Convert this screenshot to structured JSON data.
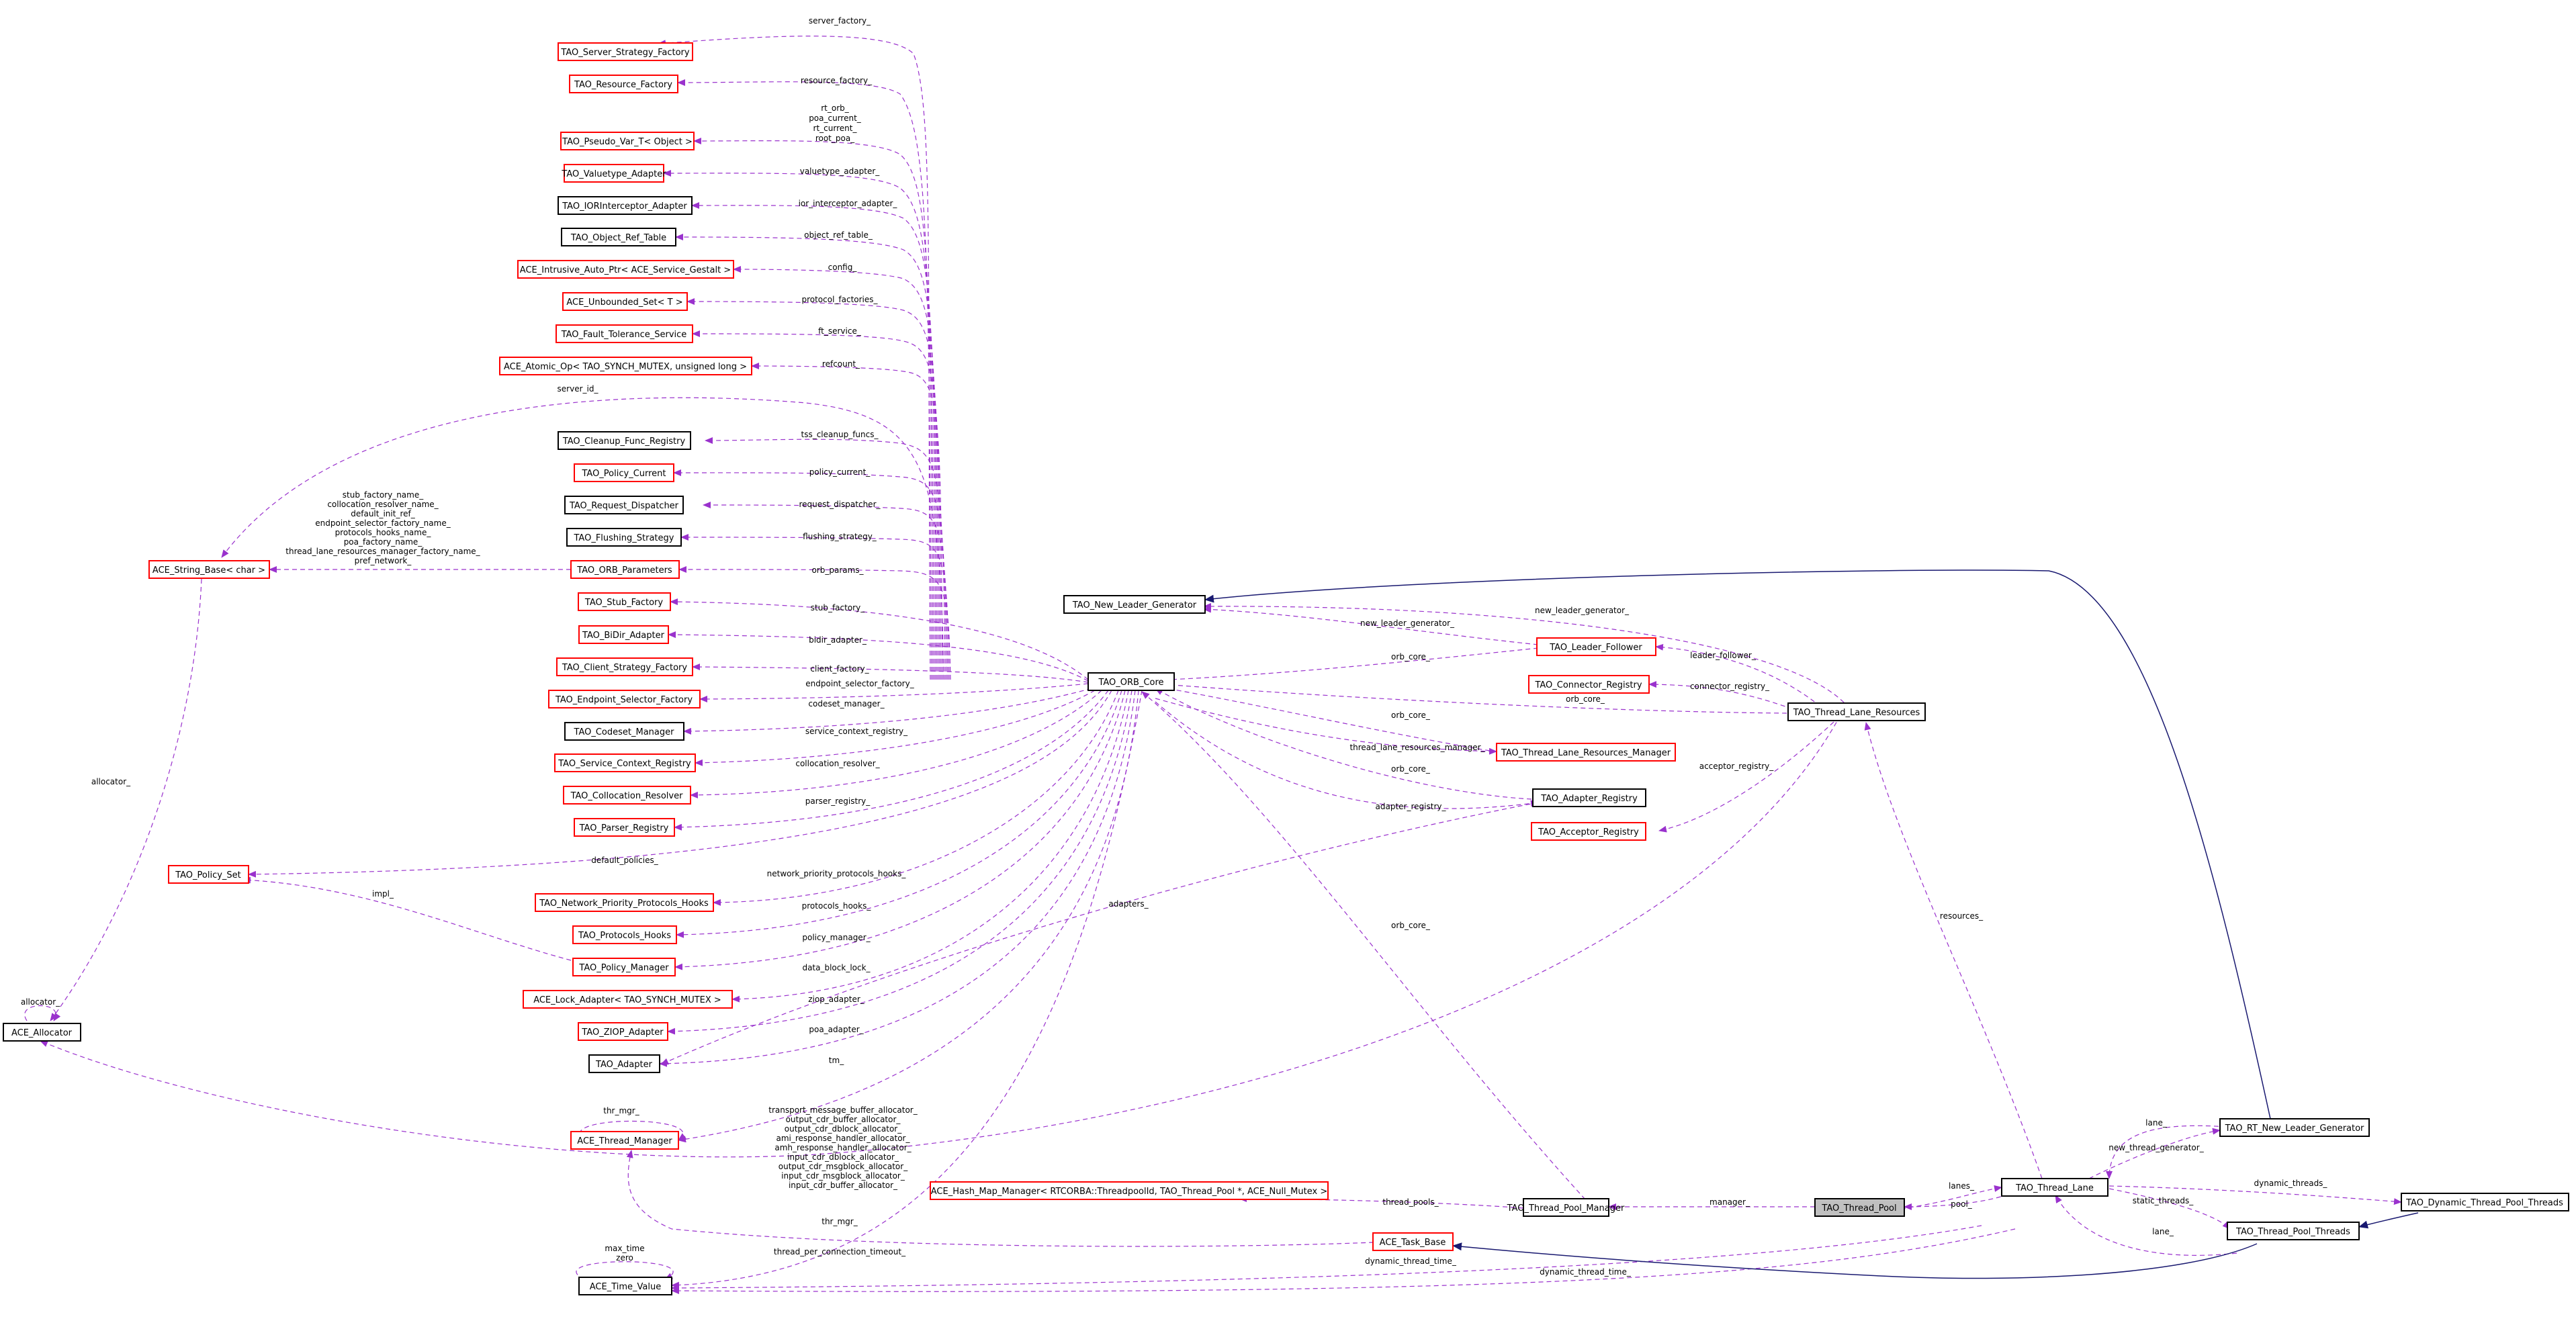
{
  "colors": {
    "normal_border": "#000000",
    "incomplete_border": "#ff0000",
    "focus_fill": "#c0c0c0",
    "usage_edge": "#9a32cd",
    "inheritance_edge": "#191970"
  },
  "nodes": {
    "server_strategy_factory": "TAO_Server_Strategy_Factory",
    "resource_factory": "TAO_Resource_Factory",
    "pseudo_var": "TAO_Pseudo_Var_T< Object >",
    "valuetype_adapter": "TAO_Valuetype_Adapter",
    "ior_interceptor": "TAO_IORInterceptor_Adapter",
    "object_ref_table": "TAO_Object_Ref_Table",
    "intrusive_auto_ptr": "ACE_Intrusive_Auto_Ptr< ACE_Service_Gestalt >",
    "unbounded_set": "ACE_Unbounded_Set< T >",
    "fault_tolerance": "TAO_Fault_Tolerance_Service",
    "atomic_op": "ACE_Atomic_Op< TAO_SYNCH_MUTEX, unsigned long >",
    "cleanup_func": "TAO_Cleanup_Func_Registry",
    "policy_current": "TAO_Policy_Current",
    "request_dispatcher": "TAO_Request_Dispatcher",
    "flushing_strategy": "TAO_Flushing_Strategy",
    "orb_parameters": "TAO_ORB_Parameters",
    "string_base": "ACE_String_Base< char >",
    "stub_factory": "TAO_Stub_Factory",
    "bidir_adapter": "TAO_BiDir_Adapter",
    "client_strategy_factory": "TAO_Client_Strategy_Factory",
    "endpoint_selector_factory": "TAO_Endpoint_Selector_Factory",
    "codeset_manager": "TAO_Codeset_Manager",
    "service_context_registry": "TAO_Service_Context_Registry",
    "collocation_resolver": "TAO_Collocation_Resolver",
    "parser_registry": "TAO_Parser_Registry",
    "policy_set": "TAO_Policy_Set",
    "network_priority_hooks": "TAO_Network_Priority_Protocols_Hooks",
    "protocols_hooks": "TAO_Protocols_Hooks",
    "policy_manager": "TAO_Policy_Manager",
    "lock_adapter": "ACE_Lock_Adapter< TAO_SYNCH_MUTEX >",
    "ziop_adapter": "TAO_ZIOP_Adapter",
    "allocator": "ACE_Allocator",
    "tao_adapter": "TAO_Adapter",
    "thread_manager": "ACE_Thread_Manager",
    "hash_map_manager": "ACE_Hash_Map_Manager< RTCORBA::ThreadpoolId, TAO_Thread_Pool *, ACE_Null_Mutex >",
    "task_base": "ACE_Task_Base",
    "time_value": "ACE_Time_Value",
    "new_leader_generator": "TAO_New_Leader_Generator",
    "leader_follower": "TAO_Leader_Follower",
    "connector_registry": "TAO_Connector_Registry",
    "orb_core": "TAO_ORB_Core",
    "thread_lane_resources": "TAO_Thread_Lane_Resources",
    "tlr_manager": "TAO_Thread_Lane_Resources_Manager",
    "adapter_registry": "TAO_Adapter_Registry",
    "acceptor_registry": "TAO_Acceptor_Registry",
    "rt_new_leader_generator": "TAO_RT_New_Leader_Generator",
    "thread_lane": "TAO_Thread_Lane",
    "dynamic_thread_pool_threads": "TAO_Dynamic_Thread_Pool_Threads",
    "thread_pool_threads": "TAO_Thread_Pool_Threads",
    "thread_pool_manager": "TAO_Thread_Pool_Manager",
    "thread_pool": "TAO_Thread_Pool"
  },
  "edge_labels": {
    "server_factory": "server_factory_",
    "resource_factory": "resource_factory_",
    "pseudo_var": [
      "rt_orb_",
      "poa_current_",
      "rt_current_",
      "root_poa_"
    ],
    "valuetype_adapter": "valuetype_adapter_",
    "ior_interceptor_adapter": "ior_interceptor_adapter_",
    "object_ref_table": "object_ref_table_",
    "config": "config_",
    "protocol_factories": "protocol_factories_",
    "ft_service": "ft_service_",
    "refcount": "refcount_",
    "server_id": "server_id_",
    "tss_cleanup_funcs": "tss_cleanup_funcs_",
    "policy_current": "policy_current_",
    "request_dispatcher": "request_dispatcher_",
    "flushing_strategy": "flushing_strategy_",
    "string_params": [
      "stub_factory_name_",
      "collocation_resolver_name_",
      "default_init_ref_",
      "endpoint_selector_factory_name_",
      "protocols_hooks_name_",
      "poa_factory_name_",
      "thread_lane_resources_manager_factory_name_",
      "pref_network_"
    ],
    "orb_params": "orb_params_",
    "stub_factory": "stub_factory_",
    "bidir_adapter": "bidir_adapter_",
    "client_factory": "client_factory_",
    "endpoint_selector_factory": "endpoint_selector_factory_",
    "codeset_manager": "codeset_manager_",
    "service_context_registry": "service_context_registry_",
    "collocation_resolver": "collocation_resolver_",
    "parser_registry": "parser_registry_",
    "default_policies": "default_policies_",
    "impl": "impl_",
    "network_priority_protocols_hooks": "network_priority_protocols_hooks_",
    "protocols_hooks": "protocols_hooks_",
    "policy_manager": "policy_manager_",
    "data_block_lock": "data_block_lock_",
    "ziop_adapter": "ziop_adapter_",
    "poa_adapter": "poa_adapter_",
    "tm": "tm_",
    "allocator": "allocator_",
    "thr_mgr_self": "thr_mgr_",
    "allocator_list": [
      "transport_message_buffer_allocator_",
      "output_cdr_buffer_allocator_",
      "output_cdr_dblock_allocator_",
      "ami_response_handler_allocator_",
      "amh_response_handler_allocator_",
      "input_cdr_dblock_allocator_",
      "output_cdr_msgblock_allocator_",
      "input_cdr_msgblock_allocator_",
      "input_cdr_buffer_allocator_"
    ],
    "thr_mgr": "thr_mgr_",
    "thread_per_connection_timeout": "thread_per_connection_timeout_",
    "time_value_self": [
      "max_time",
      "zero"
    ],
    "dynamic_thread_time_a": "dynamic_thread_time_",
    "dynamic_thread_time_b": "dynamic_thread_time_",
    "new_leader_generator_a": "new_leader_generator_",
    "new_leader_generator_b": "new_leader_generator_",
    "leader_follower": "leader_follower_",
    "connector_registry": "connector_registry_",
    "orb_core_a": "orb_core_",
    "orb_core_b": "orb_core_",
    "orb_core_c": "orb_core_",
    "orb_core_d": "orb_core_",
    "orb_core_e": "orb_core_",
    "orb_core_f": "orb_core_",
    "tlr_manager": "thread_lane_resources_manager_",
    "adapter_registry": "adapter_registry_",
    "acceptor_registry": "acceptor_registry_",
    "adapters": "adapters_",
    "resources": "resources_",
    "lane": "lane_",
    "new_thread_generator": "new_thread_generator_",
    "dynamic_threads": "dynamic_threads_",
    "static_threads": "static_threads_",
    "lane_b": "lane_",
    "lanes": "lanes_",
    "pool": "pool_",
    "thread_pools": "thread_pools_",
    "manager": "manager_"
  }
}
